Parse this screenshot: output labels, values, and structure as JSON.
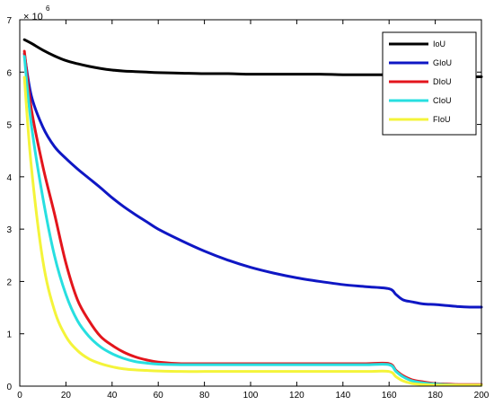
{
  "chart_data": {
    "type": "line",
    "title": "",
    "xlabel": "",
    "ylabel": "",
    "xlim": [
      0,
      200
    ],
    "ylim": [
      0,
      7
    ],
    "x_ticks": [
      "0",
      "20",
      "40",
      "60",
      "80",
      "100",
      "120",
      "140",
      "160",
      "180",
      "200"
    ],
    "y_ticks": [
      "0",
      "1",
      "2",
      "3",
      "4",
      "5",
      "6",
      "7"
    ],
    "y_multiplier": "× 10",
    "y_exponent": "6",
    "grid": false,
    "legend_position": "top-right",
    "x": [
      2,
      5,
      10,
      15,
      20,
      25,
      30,
      35,
      40,
      45,
      50,
      55,
      60,
      70,
      80,
      90,
      100,
      110,
      120,
      130,
      140,
      150,
      160,
      163,
      166,
      170,
      175,
      180,
      185,
      190,
      195,
      200
    ],
    "series": [
      {
        "name": "IoU",
        "color": "#000000",
        "values": [
          6.62,
          6.55,
          6.42,
          6.31,
          6.22,
          6.16,
          6.11,
          6.07,
          6.04,
          6.02,
          6.01,
          6.0,
          5.99,
          5.98,
          5.97,
          5.97,
          5.96,
          5.96,
          5.96,
          5.96,
          5.95,
          5.95,
          5.95,
          5.95,
          5.95,
          5.94,
          5.94,
          5.93,
          5.93,
          5.92,
          5.91,
          5.91
        ]
      },
      {
        "name": "GIoU",
        "color": "#0f17c4",
        "values": [
          6.35,
          5.55,
          4.95,
          4.58,
          4.35,
          4.15,
          3.97,
          3.79,
          3.6,
          3.43,
          3.28,
          3.14,
          3.0,
          2.78,
          2.58,
          2.41,
          2.27,
          2.16,
          2.07,
          2.0,
          1.94,
          1.9,
          1.86,
          1.75,
          1.65,
          1.61,
          1.57,
          1.56,
          1.54,
          1.52,
          1.51,
          1.51
        ]
      },
      {
        "name": "DIoU",
        "color": "#e3151c",
        "values": [
          6.4,
          5.3,
          4.2,
          3.3,
          2.35,
          1.65,
          1.25,
          0.95,
          0.78,
          0.65,
          0.56,
          0.5,
          0.46,
          0.43,
          0.43,
          0.43,
          0.43,
          0.43,
          0.43,
          0.43,
          0.43,
          0.43,
          0.43,
          0.3,
          0.2,
          0.12,
          0.08,
          0.05,
          0.04,
          0.03,
          0.03,
          0.03
        ]
      },
      {
        "name": "CIoU",
        "color": "#27dfe0",
        "values": [
          6.3,
          5.0,
          3.6,
          2.5,
          1.75,
          1.25,
          0.95,
          0.75,
          0.62,
          0.53,
          0.47,
          0.44,
          0.42,
          0.41,
          0.41,
          0.41,
          0.41,
          0.41,
          0.41,
          0.41,
          0.41,
          0.41,
          0.41,
          0.28,
          0.18,
          0.1,
          0.06,
          0.04,
          0.03,
          0.02,
          0.02,
          0.02
        ]
      },
      {
        "name": "FIoU",
        "color": "#f4f43a",
        "values": [
          5.9,
          4.2,
          2.4,
          1.45,
          0.95,
          0.68,
          0.52,
          0.43,
          0.37,
          0.33,
          0.31,
          0.3,
          0.29,
          0.28,
          0.28,
          0.28,
          0.28,
          0.28,
          0.28,
          0.28,
          0.28,
          0.28,
          0.28,
          0.18,
          0.1,
          0.05,
          0.03,
          0.02,
          0.02,
          0.02,
          0.02,
          0.02
        ]
      }
    ]
  }
}
